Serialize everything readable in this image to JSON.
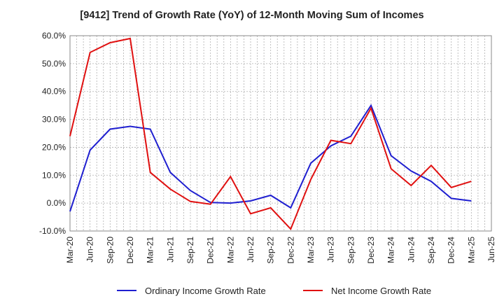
{
  "chart_data": {
    "type": "line",
    "title": "[9412]  Trend of Growth Rate (YoY) of 12-Month Moving Sum of Incomes",
    "xlabel": "",
    "ylabel": "",
    "ylim": [
      -10,
      60
    ],
    "y_ticks": [
      "60.0%",
      "50.0%",
      "40.0%",
      "30.0%",
      "20.0%",
      "10.0%",
      "0.0%",
      "-10.0%"
    ],
    "x_ticks": [
      "Mar-20",
      "Jun-20",
      "Sep-20",
      "Dec-20",
      "Mar-21",
      "Jun-21",
      "Sep-21",
      "Dec-21",
      "Mar-22",
      "Jun-22",
      "Sep-22",
      "Dec-22",
      "Mar-23",
      "Jun-23",
      "Sep-23",
      "Dec-23",
      "Mar-24",
      "Jun-24",
      "Sep-24",
      "Dec-24",
      "Mar-25",
      "Jun-25"
    ],
    "grid": true,
    "legend_position": "bottom",
    "series": [
      {
        "name": "Ordinary Income Growth Rate",
        "color": "#1f1fd0",
        "x": [
          "Mar-20",
          "Jun-20",
          "Sep-20",
          "Dec-20",
          "Mar-21",
          "Jun-21",
          "Sep-21",
          "Dec-21",
          "Mar-22",
          "Jun-22",
          "Sep-22",
          "Dec-22",
          "Mar-23",
          "Jun-23",
          "Sep-23",
          "Dec-23",
          "Mar-24",
          "Jun-24",
          "Sep-24",
          "Dec-24",
          "Mar-25"
        ],
        "values": [
          -3.0,
          19.0,
          26.5,
          27.5,
          26.5,
          11.0,
          4.5,
          0.2,
          0.0,
          0.8,
          2.8,
          -1.7,
          14.3,
          20.5,
          24.0,
          35.0,
          17.0,
          11.5,
          7.8,
          1.7,
          0.8
        ]
      },
      {
        "name": "Net Income Growth Rate",
        "color": "#e01010",
        "x": [
          "Mar-20",
          "Jun-20",
          "Sep-20",
          "Dec-20",
          "Mar-21",
          "Jun-21",
          "Sep-21",
          "Dec-21",
          "Mar-22",
          "Jun-22",
          "Sep-22",
          "Dec-22",
          "Mar-23",
          "Jun-23",
          "Sep-23",
          "Dec-23",
          "Mar-24",
          "Jun-24",
          "Sep-24",
          "Dec-24",
          "Mar-25"
        ],
        "values": [
          24.0,
          54.0,
          57.5,
          59.0,
          11.0,
          5.0,
          0.6,
          -0.4,
          9.5,
          -3.8,
          -1.7,
          -9.3,
          8.5,
          22.5,
          21.3,
          34.0,
          12.3,
          6.3,
          13.5,
          5.6,
          7.8
        ]
      }
    ]
  }
}
